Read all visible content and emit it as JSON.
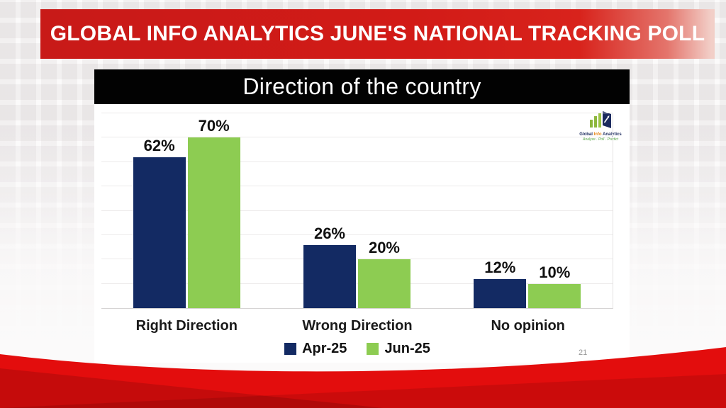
{
  "banner": {
    "title": "GLOBAL INFO ANALYTICS JUNE'S NATIONAL TRACKING POLL",
    "bg_color": "#d21b17",
    "text_color": "#ffffff"
  },
  "slide": {
    "title": "Direction of the country",
    "title_bar_color": "#020202",
    "page_number": "21"
  },
  "logo": {
    "words": [
      "Global",
      "Info",
      "Analytics"
    ],
    "word_colors": [
      "#1b2a5e",
      "#e8891c",
      "#1b2a5e"
    ],
    "tagline": "Analyze . Poll . Predict"
  },
  "footer": {
    "red_color": "#e30d0d"
  },
  "chart_data": {
    "type": "bar",
    "title": "Direction of the country",
    "categories": [
      "Right Direction",
      "Wrong Direction",
      "No opinion"
    ],
    "series": [
      {
        "name": "Apr-25",
        "color": "#132a63",
        "values": [
          62,
          26,
          12
        ]
      },
      {
        "name": "Jun-25",
        "color": "#8dcc52",
        "values": [
          70,
          20,
          10
        ]
      }
    ],
    "value_suffix": "%",
    "ylim": [
      0,
      80
    ],
    "grid_step": 10,
    "grid": true,
    "legend_position": "bottom",
    "data_labels": true
  }
}
